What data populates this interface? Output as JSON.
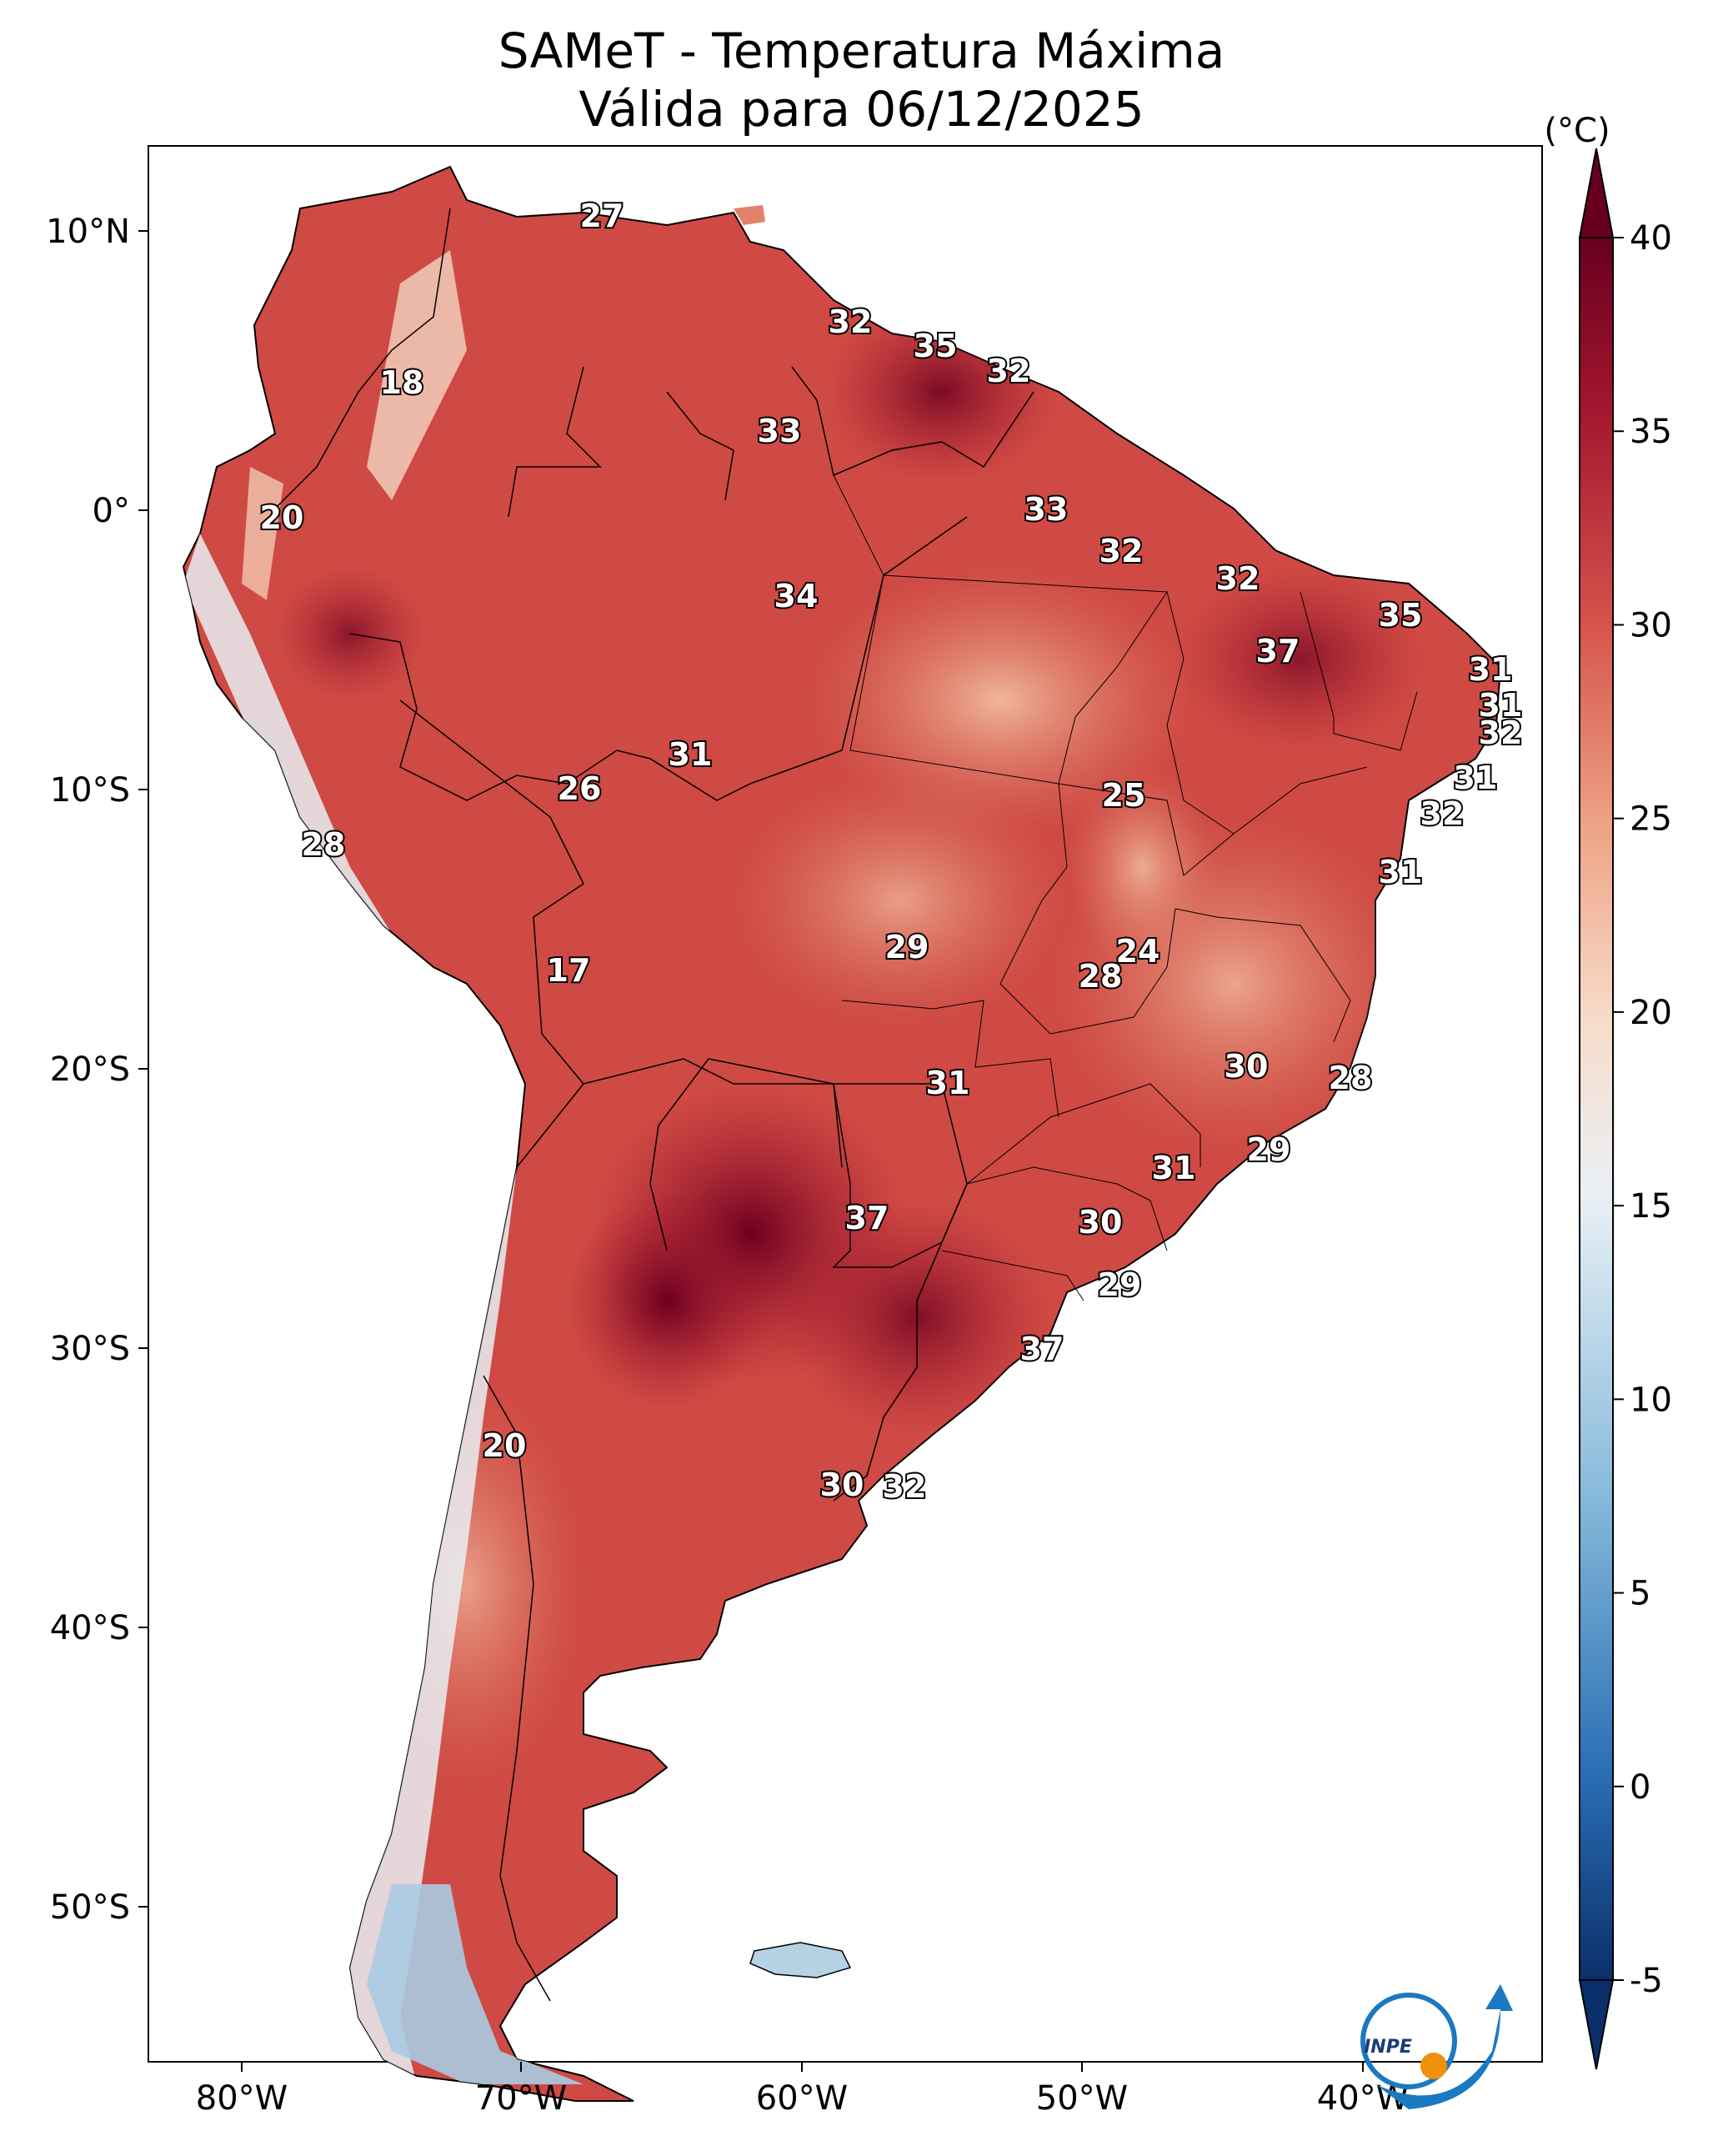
{
  "title": {
    "line1": "SAMeT - Temperatura Máxima",
    "line2": "Válida para 06/12/2025"
  },
  "colorbar": {
    "unit": "(°C)",
    "ticks": [
      "40",
      "35",
      "30",
      "25",
      "20",
      "15",
      "10",
      "5",
      "0",
      "-5"
    ],
    "range": [
      -5,
      40
    ],
    "colors": [
      "#0b2f6b",
      "#2a6fb5",
      "#88bbdb",
      "#e9f0f5",
      "#f7dccb",
      "#eea486",
      "#d5524b",
      "#a4162f",
      "#67001f"
    ]
  },
  "axes": {
    "latitude_labels": [
      "10°N",
      "0°",
      "10°S",
      "20°S",
      "30°S",
      "40°S",
      "50°S"
    ],
    "longitude_labels": [
      "80°W",
      "70°W",
      "60°W",
      "50°W",
      "40°W"
    ]
  },
  "temperature_labels": [
    {
      "id": "t-27",
      "v": "27"
    },
    {
      "id": "t-32a",
      "v": "32"
    },
    {
      "id": "t-35a",
      "v": "35"
    },
    {
      "id": "t-32b",
      "v": "32"
    },
    {
      "id": "t-18",
      "v": "18"
    },
    {
      "id": "t-33a",
      "v": "33"
    },
    {
      "id": "t-33b",
      "v": "33"
    },
    {
      "id": "t-20a",
      "v": "20"
    },
    {
      "id": "t-32c",
      "v": "32"
    },
    {
      "id": "t-32d",
      "v": "32"
    },
    {
      "id": "t-34",
      "v": "34"
    },
    {
      "id": "t-35b",
      "v": "35"
    },
    {
      "id": "t-37a",
      "v": "37"
    },
    {
      "id": "t-31a",
      "v": "31"
    },
    {
      "id": "t-31b",
      "v": "31"
    },
    {
      "id": "t-32e",
      "v": "32"
    },
    {
      "id": "t-31c",
      "v": "31"
    },
    {
      "id": "t-26",
      "v": "26"
    },
    {
      "id": "t-25",
      "v": "25"
    },
    {
      "id": "t-31d",
      "v": "31"
    },
    {
      "id": "t-32f",
      "v": "32"
    },
    {
      "id": "t-28a",
      "v": "28"
    },
    {
      "id": "t-31e",
      "v": "31"
    },
    {
      "id": "t-24",
      "v": "24"
    },
    {
      "id": "t-29a",
      "v": "29"
    },
    {
      "id": "t-28b",
      "v": "28"
    },
    {
      "id": "t-17",
      "v": "17"
    },
    {
      "id": "t-30a",
      "v": "30"
    },
    {
      "id": "t-28c",
      "v": "28"
    },
    {
      "id": "t-31f",
      "v": "31"
    },
    {
      "id": "t-29b",
      "v": "29"
    },
    {
      "id": "t-31g",
      "v": "31"
    },
    {
      "id": "t-37b",
      "v": "37"
    },
    {
      "id": "t-30b",
      "v": "30"
    },
    {
      "id": "t-29c",
      "v": "29"
    },
    {
      "id": "t-37c",
      "v": "37"
    },
    {
      "id": "t-20b",
      "v": "20"
    },
    {
      "id": "t-30c",
      "v": "30"
    },
    {
      "id": "t-32g",
      "v": "32"
    }
  ],
  "logo": {
    "text": "INPE"
  }
}
